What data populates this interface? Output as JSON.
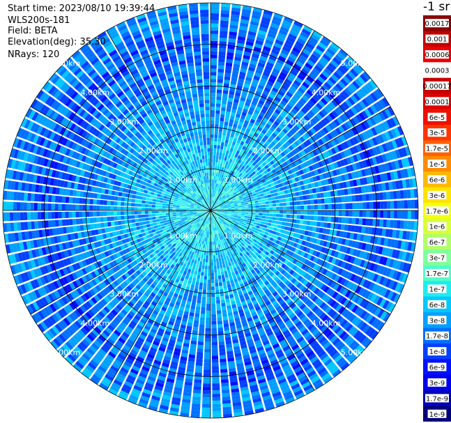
{
  "header": {
    "start_time": "Start time: 2023/08/10 19:39:44",
    "instrument": "WLS200s-181",
    "field": "Field: BETA",
    "elevation": "Elevation(deg): 35.30",
    "nrays": "NRays: 120"
  },
  "chart_data": {
    "type": "heatmap",
    "projection": "polar-ppi",
    "field": "BETA",
    "unit": "-1 sr",
    "n_rays": 120,
    "max_range_km": 5.0,
    "range_ring_km": [
      1,
      2,
      3,
      4,
      5
    ],
    "range_labels": [
      "1.00km",
      "2.00km",
      "3.00km",
      "4.00km",
      "5.00km"
    ],
    "spoke_angles_deg": [
      0,
      30,
      60,
      90,
      120,
      150,
      180,
      210,
      240,
      270,
      300,
      330
    ],
    "color_scale": {
      "labels_low_to_high": [
        "1e-9",
        "1.7e-9",
        "3e-9",
        "6e-9",
        "1e-8",
        "1.7e-8",
        "3e-8",
        "6e-8",
        "1e-7",
        "1.7e-7",
        "3e-7",
        "6e-7",
        "1e-6",
        "1.7e-6",
        "3e-6",
        "6e-6",
        "1e-5",
        "1.7e-5",
        "3e-5",
        "6e-5",
        "0.0001",
        "0.00017",
        "0.0003",
        "0.0006",
        "0.001",
        "0.0017"
      ],
      "colors_low_to_high": [
        "#00007a",
        "#0000bb",
        "#0000ee",
        "#0010ff",
        "#0040ff",
        "#0070ff",
        "#00a0ff",
        "#00c8ff",
        "#20ecf0",
        "#50ffc8",
        "#80ff9a",
        "#b0ff6a",
        "#d8ff38",
        "#f4ff10",
        "#ffe400",
        "#ffb800",
        "#ff8c00",
        "#ff6000",
        "#ff3400",
        "#ee1000",
        "#dd0000",
        "#c40000",
        "#ffffff",
        "#ee0000",
        "#c00000",
        "#8a0000"
      ]
    },
    "observed_range_log10": [
      -8.5,
      -6.0
    ],
    "dominant_colors": [
      "#0070ff",
      "#00a0ff",
      "#20ecf0"
    ]
  }
}
